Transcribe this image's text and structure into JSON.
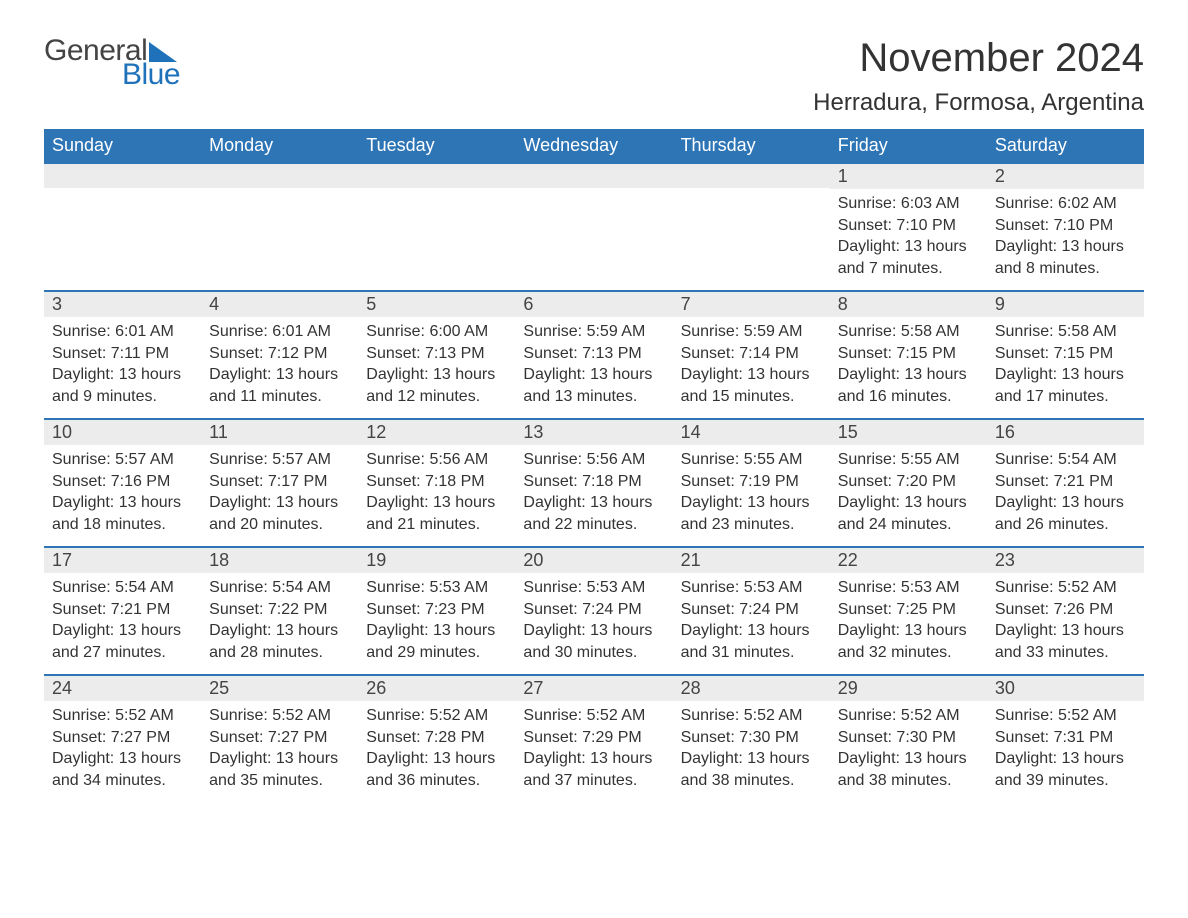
{
  "brand": {
    "part1": "General",
    "part2": "Blue"
  },
  "title": "November 2024",
  "location": "Herradura, Formosa, Argentina",
  "colors": {
    "header_bg": "#2e75b6",
    "header_text": "#ffffff",
    "row_accent": "#2e75b6",
    "daynum_bg": "#ececec",
    "body_text": "#333333",
    "logo_blue": "#1f72ba",
    "page_bg": "#ffffff"
  },
  "typography": {
    "title_fontsize": 40,
    "location_fontsize": 24,
    "dayheader_fontsize": 18,
    "body_fontsize": 16
  },
  "weekdays": [
    "Sunday",
    "Monday",
    "Tuesday",
    "Wednesday",
    "Thursday",
    "Friday",
    "Saturday"
  ],
  "leading_blanks": 5,
  "days": [
    {
      "n": 1,
      "sunrise": "6:03 AM",
      "sunset": "7:10 PM",
      "daylight": "13 hours and 7 minutes."
    },
    {
      "n": 2,
      "sunrise": "6:02 AM",
      "sunset": "7:10 PM",
      "daylight": "13 hours and 8 minutes."
    },
    {
      "n": 3,
      "sunrise": "6:01 AM",
      "sunset": "7:11 PM",
      "daylight": "13 hours and 9 minutes."
    },
    {
      "n": 4,
      "sunrise": "6:01 AM",
      "sunset": "7:12 PM",
      "daylight": "13 hours and 11 minutes."
    },
    {
      "n": 5,
      "sunrise": "6:00 AM",
      "sunset": "7:13 PM",
      "daylight": "13 hours and 12 minutes."
    },
    {
      "n": 6,
      "sunrise": "5:59 AM",
      "sunset": "7:13 PM",
      "daylight": "13 hours and 13 minutes."
    },
    {
      "n": 7,
      "sunrise": "5:59 AM",
      "sunset": "7:14 PM",
      "daylight": "13 hours and 15 minutes."
    },
    {
      "n": 8,
      "sunrise": "5:58 AM",
      "sunset": "7:15 PM",
      "daylight": "13 hours and 16 minutes."
    },
    {
      "n": 9,
      "sunrise": "5:58 AM",
      "sunset": "7:15 PM",
      "daylight": "13 hours and 17 minutes."
    },
    {
      "n": 10,
      "sunrise": "5:57 AM",
      "sunset": "7:16 PM",
      "daylight": "13 hours and 18 minutes."
    },
    {
      "n": 11,
      "sunrise": "5:57 AM",
      "sunset": "7:17 PM",
      "daylight": "13 hours and 20 minutes."
    },
    {
      "n": 12,
      "sunrise": "5:56 AM",
      "sunset": "7:18 PM",
      "daylight": "13 hours and 21 minutes."
    },
    {
      "n": 13,
      "sunrise": "5:56 AM",
      "sunset": "7:18 PM",
      "daylight": "13 hours and 22 minutes."
    },
    {
      "n": 14,
      "sunrise": "5:55 AM",
      "sunset": "7:19 PM",
      "daylight": "13 hours and 23 minutes."
    },
    {
      "n": 15,
      "sunrise": "5:55 AM",
      "sunset": "7:20 PM",
      "daylight": "13 hours and 24 minutes."
    },
    {
      "n": 16,
      "sunrise": "5:54 AM",
      "sunset": "7:21 PM",
      "daylight": "13 hours and 26 minutes."
    },
    {
      "n": 17,
      "sunrise": "5:54 AM",
      "sunset": "7:21 PM",
      "daylight": "13 hours and 27 minutes."
    },
    {
      "n": 18,
      "sunrise": "5:54 AM",
      "sunset": "7:22 PM",
      "daylight": "13 hours and 28 minutes."
    },
    {
      "n": 19,
      "sunrise": "5:53 AM",
      "sunset": "7:23 PM",
      "daylight": "13 hours and 29 minutes."
    },
    {
      "n": 20,
      "sunrise": "5:53 AM",
      "sunset": "7:24 PM",
      "daylight": "13 hours and 30 minutes."
    },
    {
      "n": 21,
      "sunrise": "5:53 AM",
      "sunset": "7:24 PM",
      "daylight": "13 hours and 31 minutes."
    },
    {
      "n": 22,
      "sunrise": "5:53 AM",
      "sunset": "7:25 PM",
      "daylight": "13 hours and 32 minutes."
    },
    {
      "n": 23,
      "sunrise": "5:52 AM",
      "sunset": "7:26 PM",
      "daylight": "13 hours and 33 minutes."
    },
    {
      "n": 24,
      "sunrise": "5:52 AM",
      "sunset": "7:27 PM",
      "daylight": "13 hours and 34 minutes."
    },
    {
      "n": 25,
      "sunrise": "5:52 AM",
      "sunset": "7:27 PM",
      "daylight": "13 hours and 35 minutes."
    },
    {
      "n": 26,
      "sunrise": "5:52 AM",
      "sunset": "7:28 PM",
      "daylight": "13 hours and 36 minutes."
    },
    {
      "n": 27,
      "sunrise": "5:52 AM",
      "sunset": "7:29 PM",
      "daylight": "13 hours and 37 minutes."
    },
    {
      "n": 28,
      "sunrise": "5:52 AM",
      "sunset": "7:30 PM",
      "daylight": "13 hours and 38 minutes."
    },
    {
      "n": 29,
      "sunrise": "5:52 AM",
      "sunset": "7:30 PM",
      "daylight": "13 hours and 38 minutes."
    },
    {
      "n": 30,
      "sunrise": "5:52 AM",
      "sunset": "7:31 PM",
      "daylight": "13 hours and 39 minutes."
    }
  ],
  "labels": {
    "sunrise": "Sunrise:",
    "sunset": "Sunset:",
    "daylight": "Daylight:"
  }
}
